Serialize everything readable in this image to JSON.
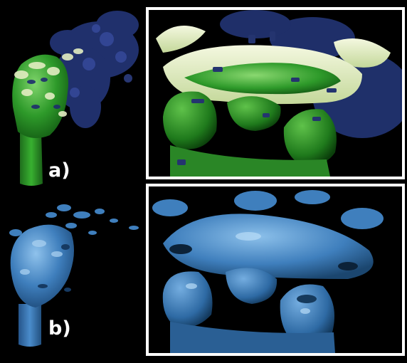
{
  "figure": {
    "panel_a": {
      "label": "a)"
    },
    "panel_b": {
      "label": "b)"
    }
  },
  "colors": {
    "background": "#000000",
    "frame": "#ffffff",
    "green_surface": "#2e9a2a",
    "green_highlight": "#e6efc6",
    "blue_mist": "#2a3c86",
    "blue_surface": "#3f7fbd"
  }
}
